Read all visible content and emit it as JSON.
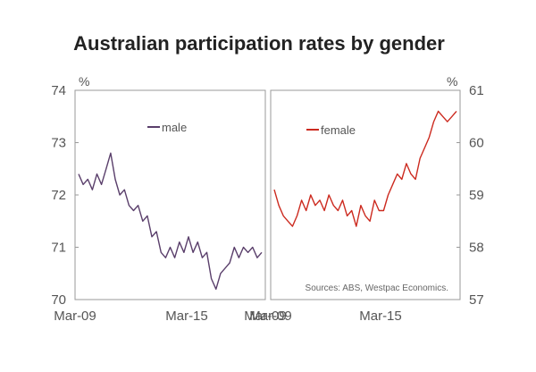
{
  "chart_title": "Australian participation rates by gender",
  "source_note": "Sources: ABS, Westpac Economics.",
  "colors": {
    "male": "#5a3f6b",
    "female": "#cc2a1f",
    "frame": "#9a9a9a",
    "text": "#555555"
  },
  "chart_data": [
    {
      "type": "line",
      "panel": "left",
      "unit_label": "%",
      "ylim": [
        70,
        74
      ],
      "yticks": [
        "70",
        "71",
        "72",
        "73",
        "74"
      ],
      "xticks": [
        "Mar-09",
        "Mar-15",
        "Mar-09"
      ],
      "grid": false,
      "legend_position": "top-center",
      "series": [
        {
          "name": "male",
          "x": [
            "Mar-09",
            "Jun-09",
            "Sep-09",
            "Dec-09",
            "Mar-10",
            "Jun-10",
            "Sep-10",
            "Dec-10",
            "Mar-11",
            "Jun-11",
            "Sep-11",
            "Dec-11",
            "Mar-12",
            "Jun-12",
            "Sep-12",
            "Dec-12",
            "Mar-13",
            "Jun-13",
            "Sep-13",
            "Dec-13",
            "Mar-14",
            "Jun-14",
            "Sep-14",
            "Dec-14",
            "Mar-15",
            "Jun-15",
            "Sep-15",
            "Dec-15",
            "Mar-16",
            "Jun-16",
            "Sep-16",
            "Dec-16",
            "Mar-17",
            "Jun-17",
            "Sep-17",
            "Dec-17",
            "Mar-18",
            "Jun-18",
            "Sep-18",
            "Dec-18",
            "Mar-19"
          ],
          "values": [
            72.4,
            72.2,
            72.3,
            72.1,
            72.4,
            72.2,
            72.5,
            72.8,
            72.3,
            72.0,
            72.1,
            71.8,
            71.7,
            71.8,
            71.5,
            71.6,
            71.2,
            71.3,
            70.9,
            70.8,
            71.0,
            70.8,
            71.1,
            70.9,
            71.2,
            70.9,
            71.1,
            70.8,
            70.9,
            70.4,
            70.2,
            70.5,
            70.6,
            70.7,
            71.0,
            70.8,
            71.0,
            70.9,
            71.0,
            70.8,
            70.9
          ]
        }
      ]
    },
    {
      "type": "line",
      "panel": "right",
      "unit_label": "%",
      "ylim": [
        57,
        61
      ],
      "yticks": [
        "57",
        "58",
        "59",
        "60",
        "61"
      ],
      "xticks": [
        "Mar-09",
        "Mar-15"
      ],
      "grid": false,
      "legend_position": "top-left",
      "series": [
        {
          "name": "female",
          "x": [
            "Mar-09",
            "Jun-09",
            "Sep-09",
            "Dec-09",
            "Mar-10",
            "Jun-10",
            "Sep-10",
            "Dec-10",
            "Mar-11",
            "Jun-11",
            "Sep-11",
            "Dec-11",
            "Mar-12",
            "Jun-12",
            "Sep-12",
            "Dec-12",
            "Mar-13",
            "Jun-13",
            "Sep-13",
            "Dec-13",
            "Mar-14",
            "Jun-14",
            "Sep-14",
            "Dec-14",
            "Mar-15",
            "Jun-15",
            "Sep-15",
            "Dec-15",
            "Mar-16",
            "Jun-16",
            "Sep-16",
            "Dec-16",
            "Mar-17",
            "Jun-17",
            "Sep-17",
            "Dec-17",
            "Mar-18",
            "Jun-18",
            "Sep-18",
            "Dec-18",
            "Mar-19"
          ],
          "values": [
            59.1,
            58.8,
            58.6,
            58.5,
            58.4,
            58.6,
            58.9,
            58.7,
            59.0,
            58.8,
            58.9,
            58.7,
            59.0,
            58.8,
            58.7,
            58.9,
            58.6,
            58.7,
            58.4,
            58.8,
            58.6,
            58.5,
            58.9,
            58.7,
            58.7,
            59.0,
            59.2,
            59.4,
            59.3,
            59.6,
            59.4,
            59.3,
            59.7,
            59.9,
            60.1,
            60.4,
            60.6,
            60.5,
            60.4,
            60.5,
            60.6
          ]
        }
      ]
    }
  ]
}
